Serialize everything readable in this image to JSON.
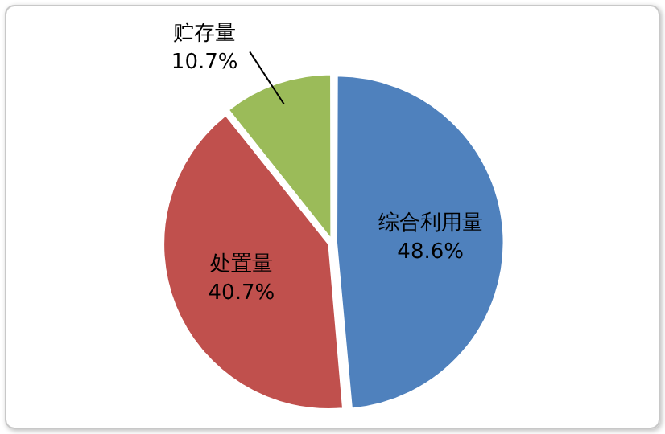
{
  "chart_data": {
    "type": "pie",
    "categories": [
      "综合利用量",
      "处置量",
      "贮存量"
    ],
    "values": [
      48.6,
      40.7,
      10.7
    ],
    "colors": [
      "#4f81bd",
      "#c0504d",
      "#9bbb59"
    ],
    "value_labels": [
      "48.6%",
      "40.7%",
      "10.7%"
    ],
    "legend": false
  }
}
